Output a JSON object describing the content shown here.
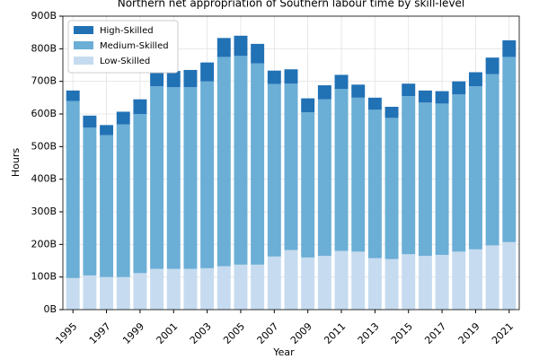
{
  "chart_data": {
    "type": "stacked-bar",
    "title": "Northern net appropriation of Southern labour time by skill-level",
    "x_label": "Year",
    "y_label": "Hours",
    "categories": [
      "1995",
      null,
      "1997",
      null,
      "1999",
      null,
      "2001",
      null,
      "2003",
      null,
      "2005",
      null,
      "2007",
      null,
      "2009",
      null,
      "2011",
      null,
      "2013",
      null,
      "2015",
      null,
      "2017",
      null,
      "2019",
      null,
      "2021"
    ],
    "series": [
      {
        "name": "High-Skilled",
        "color": "#2171b5",
        "values": [
          32,
          37,
          31,
          39,
          45,
          53,
          50,
          53,
          58,
          58,
          62,
          60,
          41,
          44,
          43,
          43,
          43,
          40,
          37,
          34,
          38,
          37,
          38,
          40,
          43,
          51,
          51
        ]
      },
      {
        "name": "Medium-Skilled",
        "color": "#6baed6",
        "values": [
          543,
          453,
          435,
          468,
          488,
          560,
          557,
          557,
          573,
          642,
          640,
          617,
          529,
          510,
          445,
          480,
          497,
          472,
          455,
          433,
          485,
          470,
          464,
          482,
          500,
          525,
          568
        ]
      },
      {
        "name": "Low-Skilled",
        "color": "#c6dbef",
        "values": [
          97,
          105,
          100,
          100,
          112,
          125,
          125,
          125,
          127,
          133,
          138,
          138,
          163,
          183,
          160,
          165,
          180,
          178,
          158,
          155,
          170,
          165,
          168,
          178,
          185,
          197,
          207
        ]
      }
    ],
    "ylim": [
      0,
      900
    ],
    "yticks": [
      {
        "value": 0,
        "label": "0B"
      },
      {
        "value": 100,
        "label": "100B"
      },
      {
        "value": 200,
        "label": "200B"
      },
      {
        "value": 300,
        "label": "300B"
      },
      {
        "value": 400,
        "label": "400B"
      },
      {
        "value": 500,
        "label": "500B"
      },
      {
        "value": 600,
        "label": "600B"
      },
      {
        "value": 700,
        "label": "700B"
      },
      {
        "value": 800,
        "label": "800B"
      },
      {
        "value": 900,
        "label": "900B"
      }
    ],
    "grid": true,
    "legend": "upper left"
  }
}
